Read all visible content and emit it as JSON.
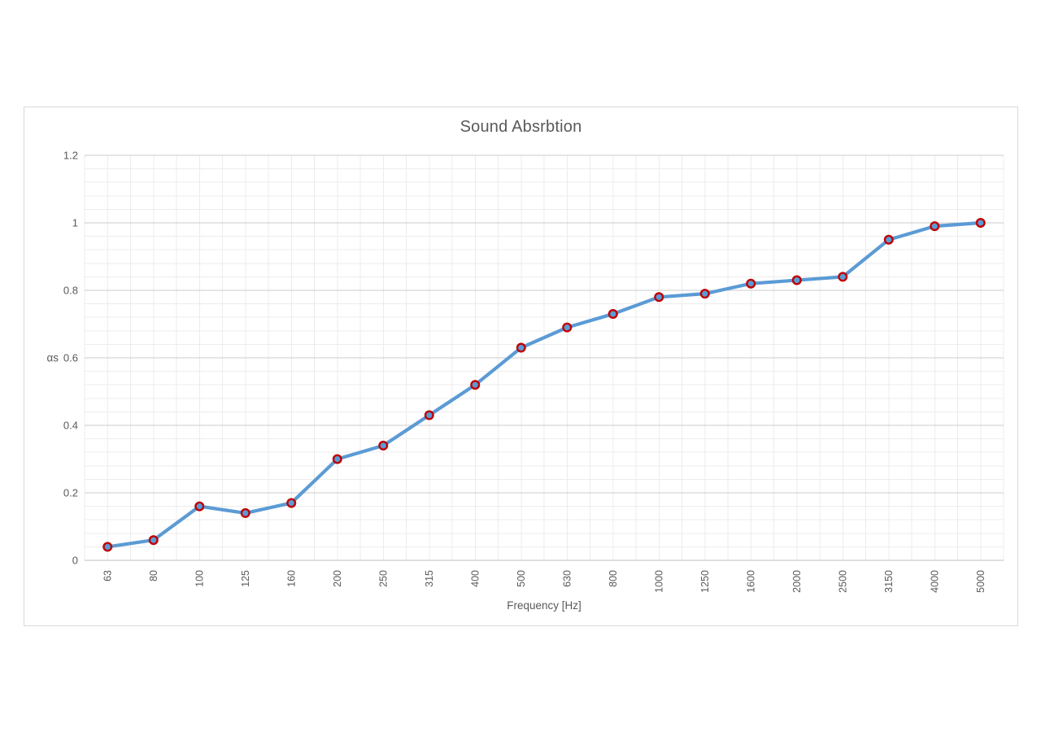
{
  "chart_data": {
    "type": "line",
    "title": "Sound Absrbtion",
    "xlabel": "Frequency [Hz]",
    "ylabel": "αs",
    "categories": [
      "63",
      "80",
      "100",
      "125",
      "160",
      "200",
      "250",
      "315",
      "400",
      "500",
      "630",
      "800",
      "1000",
      "1250",
      "1600",
      "2000",
      "2500",
      "3150",
      "4000",
      "5000"
    ],
    "values": [
      0.04,
      0.06,
      0.16,
      0.14,
      0.17,
      0.3,
      0.34,
      0.43,
      0.52,
      0.63,
      0.69,
      0.73,
      0.78,
      0.79,
      0.82,
      0.83,
      0.84,
      0.95,
      0.99,
      1.0
    ],
    "ylim": [
      0,
      1.2
    ],
    "y_major_step": 0.2,
    "y_minor_step": 0.04,
    "y_tick_labels": [
      "0",
      "0.2",
      "0.4",
      "0.6",
      "0.8",
      "1",
      "1.2"
    ],
    "x_tick_rotation_deg": -90,
    "grid": true,
    "legend": false,
    "colors": {
      "line": "#5B9BD5",
      "marker_fill": "#5B9BD5",
      "marker_border": "#C00000",
      "grid_major": "#CBCBCB",
      "grid_minor": "#ECECEC",
      "axis_line": "#BFBFBF",
      "text": "#595959",
      "chart_border": "#D9D9D9"
    }
  }
}
